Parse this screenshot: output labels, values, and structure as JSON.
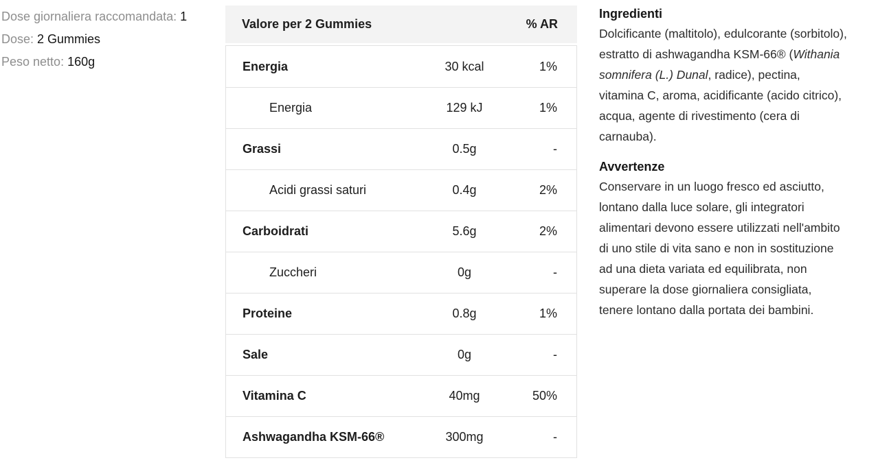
{
  "colors": {
    "background": "#ffffff",
    "table_header_bg": "#f3f3f3",
    "table_border": "#e1e1e1",
    "label_gray": "#8e8e8e",
    "text_dark": "#1d1d1d",
    "body_text": "#2c2c2c"
  },
  "product_info": {
    "items": [
      {
        "label": "Dose giornaliera raccomandata:",
        "value": "1"
      },
      {
        "label": "Dose:",
        "value": "2 Gummies"
      },
      {
        "label": "Peso netto:",
        "value": "160g"
      }
    ]
  },
  "nutrition_table": {
    "header": {
      "label": "Valore per 2 Gummies",
      "ar_label": "% AR"
    },
    "rows": [
      {
        "name": "Energia",
        "value": "30 kcal",
        "ar": "1%",
        "bold": true,
        "indent": false
      },
      {
        "name": "Energia",
        "value": "129 kJ",
        "ar": "1%",
        "bold": false,
        "indent": true
      },
      {
        "name": "Grassi",
        "value": "0.5g",
        "ar": "-",
        "bold": true,
        "indent": false
      },
      {
        "name": "Acidi grassi saturi",
        "value": "0.4g",
        "ar": "2%",
        "bold": false,
        "indent": true
      },
      {
        "name": "Carboidrati",
        "value": "5.6g",
        "ar": "2%",
        "bold": true,
        "indent": false
      },
      {
        "name": "Zuccheri",
        "value": "0g",
        "ar": "-",
        "bold": false,
        "indent": true
      },
      {
        "name": "Proteine",
        "value": "0.8g",
        "ar": "1%",
        "bold": true,
        "indent": false
      },
      {
        "name": "Sale",
        "value": "0g",
        "ar": "-",
        "bold": true,
        "indent": false
      },
      {
        "name": "Vitamina C",
        "value": "40mg",
        "ar": "50%",
        "bold": true,
        "indent": false
      },
      {
        "name": "Ashwagandha KSM-66®",
        "value": "300mg",
        "ar": "-",
        "bold": true,
        "indent": false
      }
    ]
  },
  "ingredients": {
    "heading": "Ingredienti",
    "lines": [
      [
        {
          "t": "Dolcificante (maltitolo), edulcorante (sorbitolo),",
          "i": false
        }
      ],
      [
        {
          "t": "estratto di ashwagandha KSM-66® (",
          "i": false
        },
        {
          "t": "Withania",
          "i": true
        }
      ],
      [
        {
          "t": "somnifera (L.) Dunal",
          "i": true
        },
        {
          "t": ", radice), pectina,",
          "i": false
        }
      ],
      [
        {
          "t": "vitamina C, aroma, acidificante (acido citrico),",
          "i": false
        }
      ],
      [
        {
          "t": "acqua, agente di rivestimento (cera di",
          "i": false
        }
      ],
      [
        {
          "t": "carnauba).",
          "i": false
        }
      ]
    ]
  },
  "warnings": {
    "heading": "Avvertenze",
    "lines": [
      [
        {
          "t": "Conservare in un luogo fresco ed asciutto,",
          "i": false
        }
      ],
      [
        {
          "t": "lontano dalla luce solare, gli integratori",
          "i": false
        }
      ],
      [
        {
          "t": "alimentari devono essere utilizzati nell'ambito",
          "i": false
        }
      ],
      [
        {
          "t": "di uno stile di vita sano e non in sostituzione",
          "i": false
        }
      ],
      [
        {
          "t": "ad una dieta variata ed equilibrata, non",
          "i": false
        }
      ],
      [
        {
          "t": "superare la dose giornaliera consigliata,",
          "i": false
        }
      ],
      [
        {
          "t": "tenere lontano dalla portata dei bambini.",
          "i": false
        }
      ]
    ]
  }
}
